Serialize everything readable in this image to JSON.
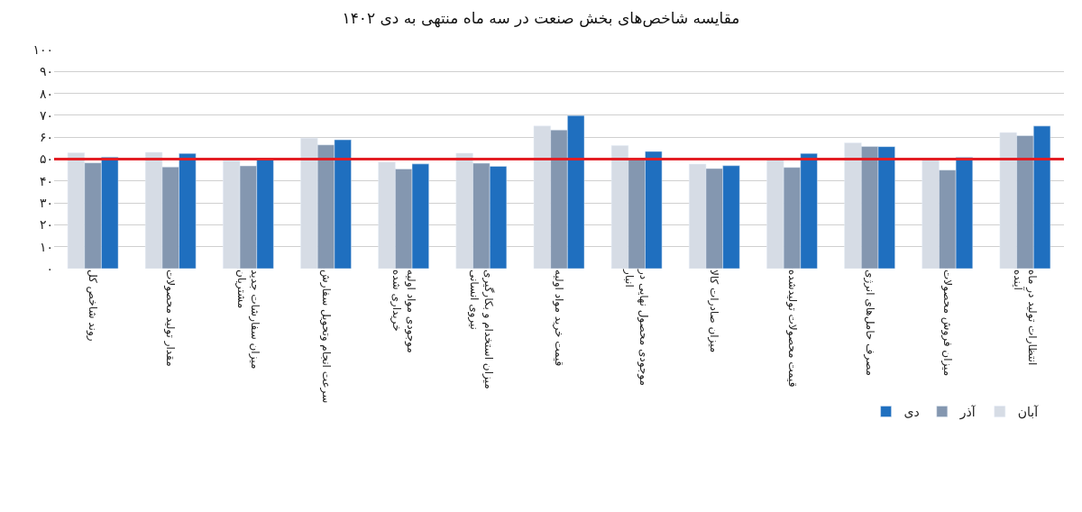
{
  "chart_data": {
    "type": "bar",
    "title": "مقایسه شاخص‌های بخش صنعت در سه ماه منتهی به دی ۱۴۰۲",
    "categories": [
      "روند شاخص کل",
      "مقدار تولید محصولات",
      "میزان سفارشات جدید مشتریان",
      "سرعت انجام وتحویل سفارش",
      "موجودی مواد اولیه خریداری شده",
      "میزان استخدام و بکارگیری نیروی انسانی",
      "قیمت خرید مواد اولیه",
      "موجودی محصول نهایی در انبار",
      "میزان صادرات کالا",
      "قیمت محصولات تولیدشده",
      "مصرف حامل‌های انرژی",
      "میزان فروش محصولات",
      "انتظارات تولید در ماه آینده"
    ],
    "series": [
      {
        "name": "آبان",
        "color": "#d6dce5",
        "values": [
          52.9,
          53.1,
          49.3,
          59.6,
          48.6,
          52.7,
          65.1,
          56.2,
          47.7,
          49.7,
          57.4,
          49.9,
          62.1
        ]
      },
      {
        "name": "آذر",
        "color": "#8497b0",
        "values": [
          48.3,
          46.4,
          46.9,
          56.5,
          45.5,
          48.1,
          63.3,
          50.1,
          45.7,
          46.2,
          55.8,
          45.0,
          60.7
        ]
      },
      {
        "name": "دی",
        "color": "#1f6fbf",
        "values": [
          50.9,
          52.6,
          49.8,
          58.8,
          47.8,
          46.7,
          69.9,
          53.5,
          47.0,
          52.6,
          55.7,
          50.8,
          65.1
        ]
      }
    ],
    "ylim": [
      0,
      100
    ],
    "yticks": [
      {
        "value": 0,
        "label": "۰"
      },
      {
        "value": 10,
        "label": "۱۰"
      },
      {
        "value": 20,
        "label": "۲۰"
      },
      {
        "value": 30,
        "label": "۳۰"
      },
      {
        "value": 40,
        "label": "۴۰"
      },
      {
        "value": 50,
        "label": "۵۰"
      },
      {
        "value": 60,
        "label": "۶۰"
      },
      {
        "value": 70,
        "label": "۷۰"
      },
      {
        "value": 80,
        "label": "۸۰"
      },
      {
        "value": 90,
        "label": "۹۰"
      },
      {
        "value": 100,
        "label": "۱۰۰"
      }
    ],
    "grid": "y",
    "legend": "bottom right",
    "ref_lines": [
      {
        "axis": "y",
        "value": 50,
        "color": "#e31e24"
      }
    ]
  }
}
